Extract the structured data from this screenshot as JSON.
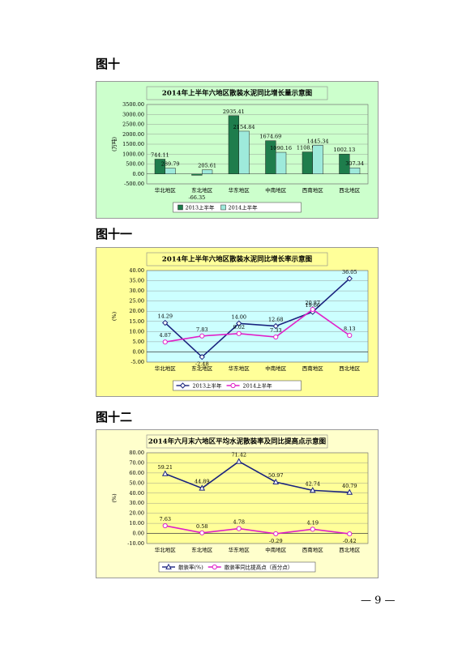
{
  "headings": [
    "图十",
    "图十一",
    "图十二"
  ],
  "page_number": "— 9 —",
  "chart_data": [
    {
      "type": "bar",
      "title": "2014年上半年六地区散装水泥同比增长量示意图",
      "y_label": "(万吨)",
      "categories": [
        "华北地区",
        "东北地区",
        "华东地区",
        "中南地区",
        "西南地区",
        "西北地区"
      ],
      "series": [
        {
          "name": "2013上半年",
          "color": "#1e7d4c",
          "values": [
            744.11,
            -66.35,
            2935.41,
            1674.69,
            1108.92,
            1002.13
          ]
        },
        {
          "name": "2014上半年",
          "color": "#9eeadb",
          "values": [
            289.79,
            205.61,
            2154.84,
            1090.16,
            1445.34,
            307.34
          ]
        }
      ],
      "ylim": [
        -500,
        3500
      ],
      "yticks": [
        {
          "value": -500,
          "label": "-500.00"
        },
        {
          "value": 0,
          "label": "0.00"
        },
        {
          "value": 500,
          "label": "500.00"
        },
        {
          "value": 1000,
          "label": "1000.00"
        },
        {
          "value": 1500,
          "label": "1500.00"
        },
        {
          "value": 2000,
          "label": "2000.00"
        },
        {
          "value": 2500,
          "label": "2500.00"
        },
        {
          "value": 3000,
          "label": "3000.00"
        },
        {
          "value": 3500,
          "label": "3500.00"
        }
      ],
      "grid": true,
      "legend": "bottom"
    },
    {
      "type": "line",
      "title": "2014年上半年六地区散装水泥同比增长率示意图",
      "y_label": "(%)",
      "categories": [
        "华北地区",
        "东北地区",
        "华东地区",
        "中南地区",
        "西南地区",
        "西北地区"
      ],
      "series": [
        {
          "name": "2013上半年",
          "color": "#1a237e",
          "marker": "diamond",
          "values": [
            14.29,
            -2.48,
            14.0,
            12.68,
            19.66,
            36.05
          ],
          "value_labels": [
            "14.29",
            "-2.48",
            "14.00",
            "12.68",
            "19.66",
            "36.05"
          ]
        },
        {
          "name": "2014上半年",
          "color": "#e020c8",
          "marker": "circle",
          "values": [
            4.87,
            7.83,
            9.02,
            7.33,
            20.87,
            8.13
          ],
          "value_labels": [
            "4.87",
            "7.83",
            "9.02",
            "7.33",
            "20.87",
            "8.13"
          ]
        }
      ],
      "ylim": [
        -5,
        40
      ],
      "yticks": [
        {
          "value": -5,
          "label": "-5.00"
        },
        {
          "value": 0,
          "label": "0.00"
        },
        {
          "value": 5,
          "label": "5.00"
        },
        {
          "value": 10,
          "label": "10.00"
        },
        {
          "value": 15,
          "label": "15.00"
        },
        {
          "value": 20,
          "label": "20.00"
        },
        {
          "value": 25,
          "label": "25.00"
        },
        {
          "value": 30,
          "label": "30.00"
        },
        {
          "value": 35,
          "label": "35.00"
        },
        {
          "value": 40,
          "label": "40.00"
        }
      ],
      "grid": true,
      "legend": "bottom"
    },
    {
      "type": "line",
      "title": "2014年六月末六地区平均水泥散装率及同比提高点示意图",
      "y_label": "(%)",
      "categories": [
        "华北地区",
        "东北地区",
        "华东地区",
        "中南地区",
        "西南地区",
        "西北地区"
      ],
      "series": [
        {
          "name": "散装率(%)",
          "color": "#1a237e",
          "marker": "triangle",
          "values": [
            59.21,
            44.89,
            71.42,
            50.97,
            42.74,
            40.79
          ]
        },
        {
          "name": "散装率同比提高点（百分点）",
          "color": "#e020c8",
          "marker": "circle",
          "values": [
            7.63,
            0.58,
            4.78,
            -0.29,
            4.19,
            -0.42
          ]
        }
      ],
      "ylim": [
        -10,
        80
      ],
      "yticks": [
        {
          "value": -10,
          "label": "-10.00"
        },
        {
          "value": 0,
          "label": "0.00"
        },
        {
          "value": 10,
          "label": "10.00"
        },
        {
          "value": 20,
          "label": "20.00"
        },
        {
          "value": 30,
          "label": "30.00"
        },
        {
          "value": 40,
          "label": "40.00"
        },
        {
          "value": 50,
          "label": "50.00"
        },
        {
          "value": 60,
          "label": "60.00"
        },
        {
          "value": 70,
          "label": "70.00"
        },
        {
          "value": 80,
          "label": "80.00"
        }
      ],
      "grid": true,
      "legend": "bottom"
    }
  ]
}
